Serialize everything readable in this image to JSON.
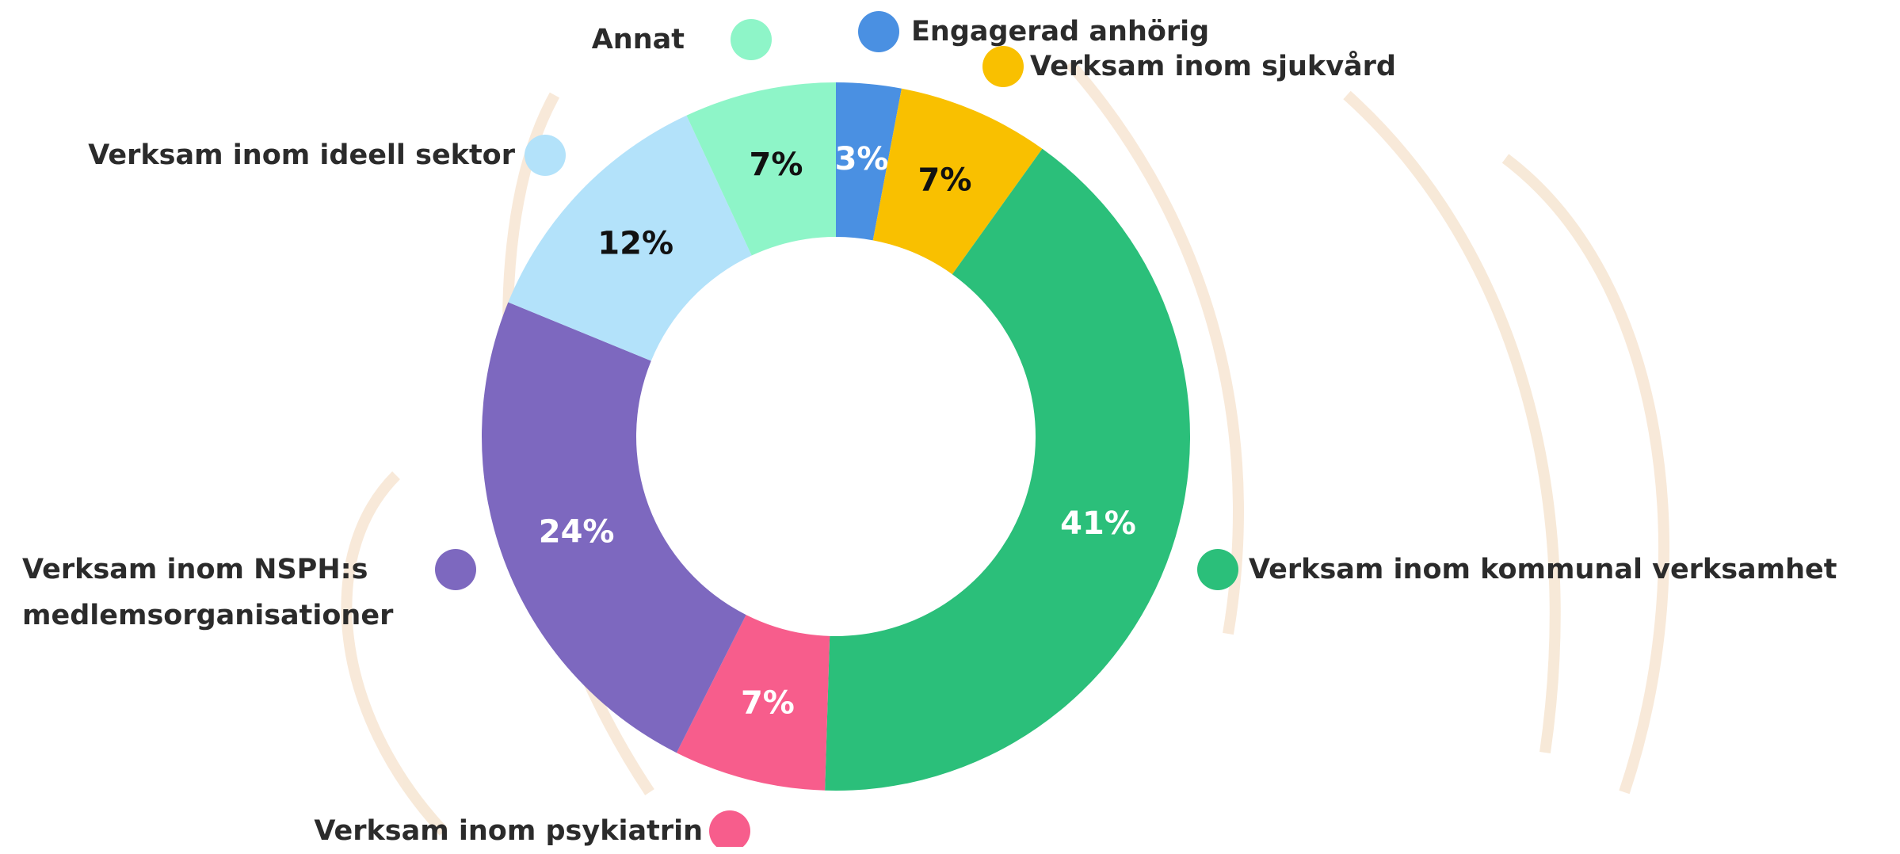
{
  "chart_data": {
    "type": "pie",
    "categories": [
      "Engagerad anhörig",
      "Verksam inom sjukvård",
      "Verksam inom kommunal verksamhet",
      "Verksam inom psykiatrin",
      "Verksam inom NSPH:s medlemsorganisationer",
      "Verksam inom ideell sektor",
      "Annat"
    ],
    "values": [
      3,
      7,
      41,
      7,
      24,
      12,
      7
    ],
    "value_labels": [
      "3%",
      "7%",
      "41%",
      "7%",
      "24%",
      "12%",
      "7%"
    ],
    "colors": [
      "#4a90e2",
      "#f9c000",
      "#2bbf7a",
      "#f75d8c",
      "#7d68bf",
      "#b3e2fa",
      "#8ef5c8"
    ]
  }
}
